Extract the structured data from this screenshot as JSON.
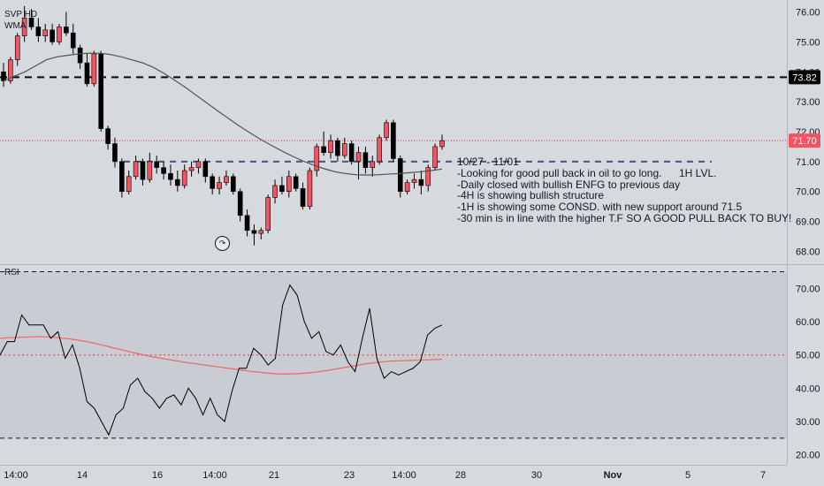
{
  "legend": {
    "symbol": "SVP HD",
    "ma": "WMA",
    "rsi": "RSI"
  },
  "annotation": {
    "lines": [
      "10/27 - 11/01",
      "-Looking for good pull back in oil to go long.",
      "-Daily closed with bullish ENFG to previous day",
      "-4H is showing bullish structure",
      "-1H is showing some CONSD. with new support around 71.5",
      "-30 min is in line with the higher T.F SO A GOOD PULL BACK TO BUY!"
    ],
    "level_label": "1H LVL."
  },
  "colors": {
    "up": "#f7525f",
    "down": "#000000",
    "wma": "#4a5a4e",
    "rsi": "#000000",
    "rsi_ma": "#f06a6a",
    "bg": "#d6d9de"
  },
  "replay_icon": "replay-icon",
  "chart_data": [
    {
      "type": "candlestick",
      "title": "SVP HD",
      "ylim": [
        67.6,
        76.4
      ],
      "y_ticks": [
        "76.00",
        "75.00",
        "74.00",
        "73.00",
        "72.00",
        "71.00",
        "70.00",
        "69.00",
        "68.00"
      ],
      "last_price": "71.70",
      "level_price": "73.82",
      "dashed_level": 71.0,
      "x_ticks": [
        "14:00",
        "14",
        "16",
        "14:00",
        "21",
        "23",
        "14:00",
        "28",
        "30",
        "Nov",
        "5",
        "7"
      ],
      "candles": [
        [
          74.0,
          74.3,
          73.5,
          73.7
        ],
        [
          73.7,
          74.5,
          73.6,
          74.4
        ],
        [
          74.4,
          75.3,
          74.2,
          75.2
        ],
        [
          75.2,
          76.2,
          75.0,
          75.8
        ],
        [
          75.8,
          76.1,
          75.4,
          75.5
        ],
        [
          75.5,
          75.8,
          75.0,
          75.2
        ],
        [
          75.2,
          75.6,
          75.0,
          75.4
        ],
        [
          75.4,
          75.6,
          74.9,
          75.0
        ],
        [
          75.0,
          75.6,
          74.9,
          75.5
        ],
        [
          75.5,
          76.0,
          75.2,
          75.3
        ],
        [
          75.3,
          75.6,
          74.6,
          74.8
        ],
        [
          74.8,
          74.9,
          74.1,
          74.3
        ],
        [
          74.3,
          74.6,
          73.5,
          73.6
        ],
        [
          73.6,
          74.7,
          73.5,
          74.6
        ],
        [
          74.6,
          74.7,
          72.0,
          72.1
        ],
        [
          72.1,
          72.2,
          71.4,
          71.6
        ],
        [
          71.6,
          71.8,
          70.8,
          71.0
        ],
        [
          71.0,
          71.1,
          69.8,
          70.0
        ],
        [
          70.0,
          70.7,
          69.9,
          70.5
        ],
        [
          70.5,
          71.2,
          70.4,
          71.0
        ],
        [
          71.0,
          71.1,
          70.2,
          70.4
        ],
        [
          70.4,
          71.3,
          70.3,
          71.0
        ],
        [
          71.0,
          71.2,
          70.6,
          70.8
        ],
        [
          70.8,
          71.0,
          70.4,
          70.6
        ],
        [
          70.6,
          70.9,
          70.2,
          70.4
        ],
        [
          70.4,
          70.7,
          70.0,
          70.2
        ],
        [
          70.2,
          70.9,
          70.1,
          70.7
        ],
        [
          70.7,
          71.0,
          70.5,
          70.8
        ],
        [
          70.8,
          71.1,
          70.6,
          71.0
        ],
        [
          71.0,
          71.1,
          70.3,
          70.5
        ],
        [
          70.5,
          70.6,
          69.9,
          70.1
        ],
        [
          70.1,
          70.5,
          69.9,
          70.3
        ],
        [
          70.3,
          70.7,
          70.2,
          70.5
        ],
        [
          70.5,
          70.6,
          69.9,
          70.0
        ],
        [
          70.0,
          70.1,
          69.0,
          69.2
        ],
        [
          69.2,
          69.4,
          68.5,
          68.7
        ],
        [
          68.7,
          68.9,
          68.2,
          68.6
        ],
        [
          68.6,
          68.8,
          68.4,
          68.7
        ],
        [
          68.7,
          69.9,
          68.6,
          69.8
        ],
        [
          69.8,
          70.4,
          69.6,
          70.2
        ],
        [
          70.2,
          70.5,
          69.9,
          70.0
        ],
        [
          70.0,
          70.7,
          69.8,
          70.5
        ],
        [
          70.5,
          70.6,
          70.0,
          70.1
        ],
        [
          70.1,
          70.3,
          69.4,
          69.5
        ],
        [
          69.5,
          70.8,
          69.4,
          70.7
        ],
        [
          70.7,
          71.6,
          70.5,
          71.5
        ],
        [
          71.5,
          72.0,
          71.2,
          71.3
        ],
        [
          71.3,
          71.9,
          71.1,
          71.7
        ],
        [
          71.7,
          71.8,
          71.0,
          71.2
        ],
        [
          71.2,
          71.8,
          71.1,
          71.6
        ],
        [
          71.6,
          71.7,
          70.9,
          71.0
        ],
        [
          71.0,
          71.5,
          70.4,
          71.3
        ],
        [
          71.3,
          71.5,
          70.6,
          70.8
        ],
        [
          70.8,
          71.2,
          70.5,
          71.0
        ],
        [
          71.0,
          71.9,
          70.9,
          71.8
        ],
        [
          71.8,
          72.4,
          71.7,
          72.3
        ],
        [
          72.3,
          72.4,
          71.0,
          71.1
        ],
        [
          71.1,
          71.2,
          69.8,
          70.0
        ],
        [
          70.0,
          70.4,
          69.9,
          70.3
        ],
        [
          70.3,
          70.6,
          70.1,
          70.4
        ],
        [
          70.4,
          70.7,
          69.9,
          70.2
        ],
        [
          70.2,
          70.9,
          70.0,
          70.8
        ],
        [
          70.8,
          71.6,
          70.7,
          71.5
        ],
        [
          71.5,
          71.9,
          71.4,
          71.7
        ]
      ],
      "wma": [
        73.7,
        73.85,
        74.0,
        74.2,
        74.4,
        74.5,
        74.55,
        74.6,
        74.62,
        74.62,
        74.58,
        74.5,
        74.4,
        74.3,
        74.15,
        73.95,
        73.72,
        73.48,
        73.22,
        72.96,
        72.7,
        72.45,
        72.2,
        71.97,
        71.75,
        71.55,
        71.36,
        71.18,
        71.02,
        70.88,
        70.76,
        70.66,
        70.6,
        70.56,
        70.55,
        70.56,
        70.58,
        70.6,
        70.63,
        70.66,
        70.7,
        70.75
      ]
    },
    {
      "type": "line",
      "title": "RSI",
      "ylim": [
        17,
        77
      ],
      "y_ticks": [
        "70.00",
        "60.00",
        "50.00",
        "40.00",
        "30.00",
        "20.00"
      ],
      "bands": [
        75,
        50,
        25
      ],
      "series": [
        {
          "values": [
            50,
            54,
            54,
            62,
            59,
            59,
            59,
            55,
            57,
            49,
            53,
            46,
            36,
            34,
            30,
            26,
            32,
            34,
            41,
            43,
            39,
            37,
            34,
            37,
            38,
            35,
            40,
            37,
            32,
            37,
            32,
            30,
            39,
            46,
            46,
            52,
            50,
            47,
            49,
            65,
            71,
            68,
            60,
            55,
            57,
            51,
            50,
            53,
            48,
            45,
            55,
            64,
            49,
            43,
            45,
            44,
            45,
            46,
            48,
            56,
            58,
            59
          ]
        },
        {
          "values": [
            55,
            55.2,
            55.3,
            55.4,
            55.5,
            55.4,
            55.2,
            54.9,
            54.5,
            54.0,
            53.4,
            52.7,
            52.0,
            51.3,
            50.6,
            50.0,
            49.4,
            48.9,
            48.4,
            47.9,
            47.5,
            47.1,
            46.7,
            46.3,
            45.9,
            45.5,
            45.1,
            44.8,
            44.5,
            44.3,
            44.3,
            44.4,
            44.6,
            44.9,
            45.3,
            45.8,
            46.3,
            46.8,
            47.3,
            47.7,
            48.0,
            48.2,
            48.3,
            48.4,
            48.5,
            48.6,
            48.7
          ]
        }
      ]
    }
  ]
}
